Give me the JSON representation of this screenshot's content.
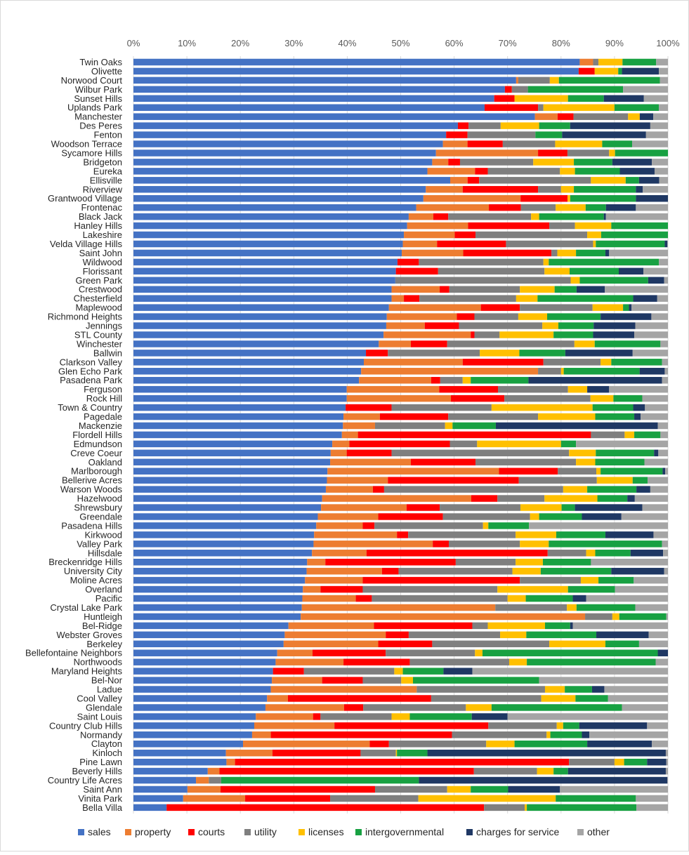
{
  "chart_data": {
    "type": "bar",
    "orientation": "horizontal",
    "stacked": "percent",
    "x_ticks": [
      "0%",
      "10%",
      "20%",
      "30%",
      "40%",
      "50%",
      "60%",
      "70%",
      "80%",
      "90%",
      "100%"
    ],
    "xlim": [
      0,
      100
    ],
    "grid": true,
    "legend_position": "bottom",
    "series": [
      {
        "name": "sales",
        "color": "#4472C4"
      },
      {
        "name": "property",
        "color": "#ED7D31"
      },
      {
        "name": "courts",
        "color": "#FF0000"
      },
      {
        "name": "utility",
        "color": "#7F7F7F"
      },
      {
        "name": "licenses",
        "color": "#FFC000"
      },
      {
        "name": "intergovernmental",
        "color": "#18A142"
      },
      {
        "name": "charges for service",
        "color": "#1F3864"
      },
      {
        "name": "other",
        "color": "#A5A5A5"
      }
    ],
    "rows": [
      {
        "label": "Twin Oaks",
        "values": [
          83.5,
          2.5,
          0,
          1,
          4.5,
          6.3,
          0,
          2.2
        ]
      },
      {
        "label": "Olivette",
        "values": [
          83.3,
          0,
          3,
          0,
          4.4,
          0.7,
          6.9,
          1.7
        ]
      },
      {
        "label": "Norwood Court",
        "values": [
          71.6,
          0.4,
          0,
          5.9,
          1.7,
          18.9,
          0,
          1.5
        ]
      },
      {
        "label": "Wilbur Park",
        "values": [
          69.5,
          0,
          1.3,
          3,
          0,
          17.8,
          0,
          8.4
        ]
      },
      {
        "label": "Sunset Hills",
        "values": [
          67.5,
          0,
          3.8,
          0,
          10,
          6.7,
          7.5,
          4.5
        ]
      },
      {
        "label": "Uplands Park",
        "values": [
          65.7,
          0,
          10,
          1,
          13.3,
          8.3,
          0,
          1.7
        ]
      },
      {
        "label": "Manchester",
        "values": [
          65.5,
          3.7,
          2.6,
          8.9,
          1.9,
          0,
          2.2,
          2.4
        ]
      },
      {
        "label": "Des Peres",
        "values": [
          60.7,
          0,
          2,
          6,
          7.2,
          5.8,
          15,
          3.3
        ]
      },
      {
        "label": "Fenton",
        "values": [
          58.5,
          0,
          4,
          12.7,
          0,
          5,
          15.7,
          4.1
        ]
      },
      {
        "label": "Woodson Terrace",
        "values": [
          57.9,
          4.6,
          6.6,
          9.8,
          8.8,
          5.6,
          0,
          6.7
        ]
      },
      {
        "label": "Sycamore Hills",
        "values": [
          56.6,
          19.1,
          5.5,
          7.8,
          1.1,
          9.9,
          0,
          0
        ]
      },
      {
        "label": "Bridgeton",
        "values": [
          55.9,
          3,
          2.2,
          13.7,
          7.6,
          7.2,
          7.4,
          3
        ]
      },
      {
        "label": "Eureka",
        "values": [
          55,
          8.9,
          2.4,
          13.5,
          2.8,
          8.4,
          6.5,
          2.5
        ]
      },
      {
        "label": "Ellisville",
        "values": [
          54.7,
          3,
          2,
          19.3,
          6,
          2.3,
          3.5,
          1.5
        ]
      },
      {
        "label": "Riverview",
        "values": [
          54.7,
          6.9,
          14.1,
          4.3,
          2.4,
          11.6,
          1.3,
          4.7
        ]
      },
      {
        "label": "Grantwood Village",
        "values": [
          54.3,
          18.2,
          8.8,
          0,
          0.5,
          12.3,
          6,
          0
        ]
      },
      {
        "label": "Frontenac",
        "values": [
          52.9,
          13.6,
          6,
          6.5,
          5.6,
          3.8,
          5.6,
          6
        ]
      },
      {
        "label": "Black Jack",
        "values": [
          51.5,
          4.6,
          2.8,
          15.5,
          1.5,
          12.1,
          0.4,
          11.6
        ]
      },
      {
        "label": "Hanley Hills",
        "values": [
          51.2,
          11.4,
          15.2,
          4.8,
          6.8,
          10.6,
          0,
          0
        ]
      },
      {
        "label": "Lakeshire",
        "values": [
          50.6,
          9.5,
          3.9,
          20.9,
          2.6,
          12.5,
          0,
          0
        ]
      },
      {
        "label": "Velda Village Hills",
        "values": [
          50.4,
          6.4,
          12.9,
          16.3,
          0.5,
          12.9,
          0.5,
          0.1
        ]
      },
      {
        "label": "Saint John",
        "values": [
          50.2,
          11.5,
          16.5,
          1.1,
          3.5,
          5.5,
          0.7,
          11
        ]
      },
      {
        "label": "Wildwood",
        "values": [
          49.4,
          0,
          4,
          23.3,
          1,
          20.6,
          0,
          1.7
        ]
      },
      {
        "label": "Florissant",
        "values": [
          49.1,
          0,
          7.9,
          19.9,
          4.7,
          9.2,
          4.6,
          4.6
        ]
      },
      {
        "label": "Green Park",
        "values": [
          49,
          0,
          0,
          32.8,
          1.7,
          12.8,
          3,
          0.7
        ]
      },
      {
        "label": "Crestwood",
        "values": [
          48.3,
          9,
          1.8,
          13.2,
          6.5,
          4.1,
          5.3,
          11.8
        ]
      },
      {
        "label": "Chesterfield",
        "values": [
          48.3,
          2.3,
          2.9,
          18.1,
          4,
          17.9,
          4.5,
          2
        ]
      },
      {
        "label": "Maplewood",
        "values": [
          47.8,
          17.2,
          7.3,
          13.6,
          5.7,
          1.1,
          0.5,
          6.8
        ]
      },
      {
        "label": "Richmond Heights",
        "values": [
          47.4,
          13.1,
          3.3,
          8.2,
          5.4,
          10,
          9.5,
          3.1
        ]
      },
      {
        "label": "Jennings",
        "values": [
          47.3,
          7.2,
          6.4,
          15.6,
          3,
          6.6,
          7.8,
          6.1
        ]
      },
      {
        "label": "STL County",
        "values": [
          46.8,
          16.3,
          0.7,
          4.7,
          10.1,
          7.4,
          7.7,
          6.3
        ]
      },
      {
        "label": "Winchester",
        "values": [
          45.9,
          6,
          6.8,
          23.8,
          3.8,
          12.3,
          0,
          1.4
        ]
      },
      {
        "label": "Ballwin",
        "values": [
          43.5,
          0,
          4.1,
          17.2,
          7.4,
          8.6,
          12.6,
          6.6
        ]
      },
      {
        "label": "Clarkson Valley",
        "values": [
          43.1,
          18.5,
          15.1,
          10.7,
          2,
          9.5,
          0,
          1.1
        ]
      },
      {
        "label": "Glen Echo Park",
        "values": [
          42.6,
          33.1,
          0,
          4.3,
          0.5,
          14.2,
          4.7,
          0.6
        ]
      },
      {
        "label": "Pasadena Park",
        "values": [
          42.2,
          13.5,
          1.7,
          4.2,
          1.5,
          10.8,
          25,
          1.1
        ]
      },
      {
        "label": "Ferguson",
        "values": [
          39.9,
          17.3,
          11,
          13.1,
          3.6,
          0,
          4.1,
          11
        ]
      },
      {
        "label": "Rock Hill",
        "values": [
          39.9,
          19.5,
          10,
          16.1,
          4.3,
          5.4,
          0,
          4.8
        ]
      },
      {
        "label": "Town & Country",
        "values": [
          39.7,
          0,
          8.6,
          18.7,
          18.9,
          7.6,
          2.2,
          4.3
        ]
      },
      {
        "label": "Pagedale",
        "values": [
          39.3,
          6.8,
          12.8,
          16.8,
          10.7,
          7.3,
          1.2,
          5.1
        ]
      },
      {
        "label": "Mackenzie",
        "values": [
          39.2,
          6,
          0,
          13.1,
          1.4,
          8.1,
          30.3,
          1.9
        ]
      },
      {
        "label": "Flordell Hills",
        "values": [
          39,
          3,
          43.6,
          6.3,
          1.8,
          4.9,
          0,
          1.4
        ]
      },
      {
        "label": "Edmundson",
        "values": [
          37.2,
          3.2,
          18.8,
          5.1,
          15.7,
          2.8,
          0,
          17.2
        ]
      },
      {
        "label": "Creve Coeur",
        "values": [
          36.9,
          3,
          8.4,
          33.2,
          5,
          10.9,
          0.8,
          1.8
        ]
      },
      {
        "label": "Oakland",
        "values": [
          36.8,
          15.1,
          12.1,
          18.8,
          3.6,
          9.2,
          0,
          4.4
        ]
      },
      {
        "label": "Marlborough",
        "values": [
          36.3,
          32.1,
          11,
          7.2,
          0.8,
          11.6,
          0.5,
          0.5
        ]
      },
      {
        "label": "Bellerive Acres",
        "values": [
          36.2,
          11.4,
          24.5,
          14.6,
          6.7,
          2.8,
          0,
          3.8
        ]
      },
      {
        "label": "Warson Woods",
        "values": [
          36,
          8.8,
          2.1,
          33.5,
          4.5,
          9.2,
          2.6,
          3.3
        ]
      },
      {
        "label": "Hazelwood",
        "values": [
          35.3,
          27.9,
          4.9,
          8.8,
          9.9,
          5.6,
          1.4,
          6.2
        ]
      },
      {
        "label": "Shrewsbury",
        "values": [
          35.1,
          16,
          6.2,
          15.1,
          7.7,
          2.5,
          12.6,
          4.8
        ]
      },
      {
        "label": "Greendale",
        "values": [
          34.5,
          11.3,
          12.1,
          16.3,
          1.7,
          8,
          7.4,
          8.7
        ]
      },
      {
        "label": "Pasadena Hills",
        "values": [
          34.2,
          8.7,
          2.2,
          20.3,
          1,
          7.6,
          0,
          26
        ]
      },
      {
        "label": "Kirkwood",
        "values": [
          33.8,
          15.5,
          2.1,
          20.1,
          7.6,
          9.2,
          9,
          2.7
        ]
      },
      {
        "label": "Valley Park",
        "values": [
          33.7,
          22.3,
          3,
          13.3,
          5.4,
          21.2,
          0,
          1.1
        ]
      },
      {
        "label": "Hillsdale",
        "values": [
          33.4,
          10.2,
          33.9,
          7.2,
          1.7,
          6.6,
          6.1,
          0.9
        ]
      },
      {
        "label": "Breckenridge Hills",
        "values": [
          32.5,
          3.4,
          24.4,
          11.2,
          5.1,
          9,
          0,
          14.4
        ]
      },
      {
        "label": "University City",
        "values": [
          32.4,
          14.1,
          3.1,
          21.3,
          5.3,
          13.2,
          9.9,
          0.7
        ]
      },
      {
        "label": "Moline Acres",
        "values": [
          32.1,
          10.8,
          29.4,
          11.4,
          3.3,
          6.6,
          0,
          6.4
        ]
      },
      {
        "label": "Overland",
        "values": [
          31.7,
          3.3,
          7.9,
          25.2,
          13.2,
          8.8,
          0,
          9.9
        ]
      },
      {
        "label": "Pacific",
        "values": [
          31.6,
          10,
          3,
          25.4,
          3.4,
          8.8,
          2.5,
          15.3
        ]
      },
      {
        "label": "Crystal Lake Park",
        "values": [
          31.5,
          36.2,
          0,
          13.4,
          1.8,
          11,
          0,
          6.1
        ]
      },
      {
        "label": "Huntleigh",
        "values": [
          31.3,
          53.2,
          0,
          5.1,
          1.3,
          8.8,
          0,
          0.3
        ]
      },
      {
        "label": "Bel-Ridge",
        "values": [
          29,
          16,
          18.4,
          2.9,
          10.7,
          4.7,
          0.5,
          17.8
        ]
      },
      {
        "label": "Webster Groves",
        "values": [
          28.3,
          18.9,
          4.3,
          17.1,
          4.9,
          13.1,
          9.8,
          3.6
        ]
      },
      {
        "label": "Berkeley",
        "values": [
          28.1,
          17.7,
          10.1,
          21.9,
          10.5,
          6.3,
          0,
          5.4
        ]
      },
      {
        "label": "Bellefontaine Neighbors",
        "values": [
          26.9,
          6.6,
          13.7,
          16.7,
          1.4,
          32.8,
          1.9,
          0
        ]
      },
      {
        "label": "Northwoods",
        "values": [
          26.6,
          12.7,
          12.4,
          18.6,
          3.3,
          24.1,
          0,
          2.3
        ]
      },
      {
        "label": "Maryland Heights",
        "values": [
          26.1,
          0,
          5.8,
          16.9,
          1.6,
          7.6,
          5.4,
          36.6
        ]
      },
      {
        "label": "Bel-Nor",
        "values": [
          25.9,
          9.4,
          7.6,
          7.2,
          2.2,
          23.6,
          0,
          24.1
        ]
      },
      {
        "label": "Ladue",
        "values": [
          25.7,
          27.3,
          0,
          24,
          3.7,
          5.1,
          2.3,
          11.9
        ]
      },
      {
        "label": "Cool Valley",
        "values": [
          25,
          3.9,
          26.8,
          20.6,
          6.4,
          6.1,
          0,
          11.2
        ]
      },
      {
        "label": "Glendale",
        "values": [
          24.7,
          14.7,
          3.6,
          19.2,
          4.8,
          24.4,
          0,
          8.6
        ]
      },
      {
        "label": "Saint Louis",
        "values": [
          22.9,
          10.7,
          1.4,
          13.3,
          3.4,
          11.6,
          6.7,
          30
        ]
      },
      {
        "label": "Country Club Hills",
        "values": [
          22.6,
          15,
          28.8,
          12.8,
          1.2,
          3,
          12.7,
          3.9
        ]
      },
      {
        "label": "Normandy",
        "values": [
          22.2,
          3.5,
          33.9,
          17.7,
          0.7,
          5.9,
          1.4,
          14.7
        ]
      },
      {
        "label": "Clayton",
        "values": [
          20.5,
          23.7,
          3.6,
          18.2,
          5.3,
          13.6,
          12.1,
          3
        ]
      },
      {
        "label": "Kinloch",
        "values": [
          17.3,
          8.7,
          16.5,
          6.6,
          0.2,
          5.7,
          44.6,
          0.4
        ]
      },
      {
        "label": "Pine Lawn",
        "values": [
          17.4,
          1.6,
          62.5,
          8.5,
          1.8,
          4.3,
          3.6,
          0.3
        ]
      },
      {
        "label": "Beverly Hills",
        "values": [
          13.9,
          2.2,
          47.6,
          11.8,
          3.1,
          2.7,
          18.3,
          0.4
        ]
      },
      {
        "label": "Country Life Acres",
        "values": [
          11.7,
          2.4,
          0,
          2.3,
          0,
          37,
          46.5,
          0.1
        ]
      },
      {
        "label": "Saint Ann",
        "values": [
          10.1,
          6.2,
          28.9,
          13.5,
          4.4,
          7,
          9.7,
          20.2
        ]
      },
      {
        "label": "Vinita Park",
        "values": [
          9.3,
          11.6,
          15.9,
          16.5,
          25.7,
          15,
          0,
          6
        ]
      },
      {
        "label": "Bella Villa",
        "values": [
          6.2,
          0,
          59.4,
          7.6,
          0.4,
          20.5,
          0,
          5.9
        ]
      }
    ]
  }
}
